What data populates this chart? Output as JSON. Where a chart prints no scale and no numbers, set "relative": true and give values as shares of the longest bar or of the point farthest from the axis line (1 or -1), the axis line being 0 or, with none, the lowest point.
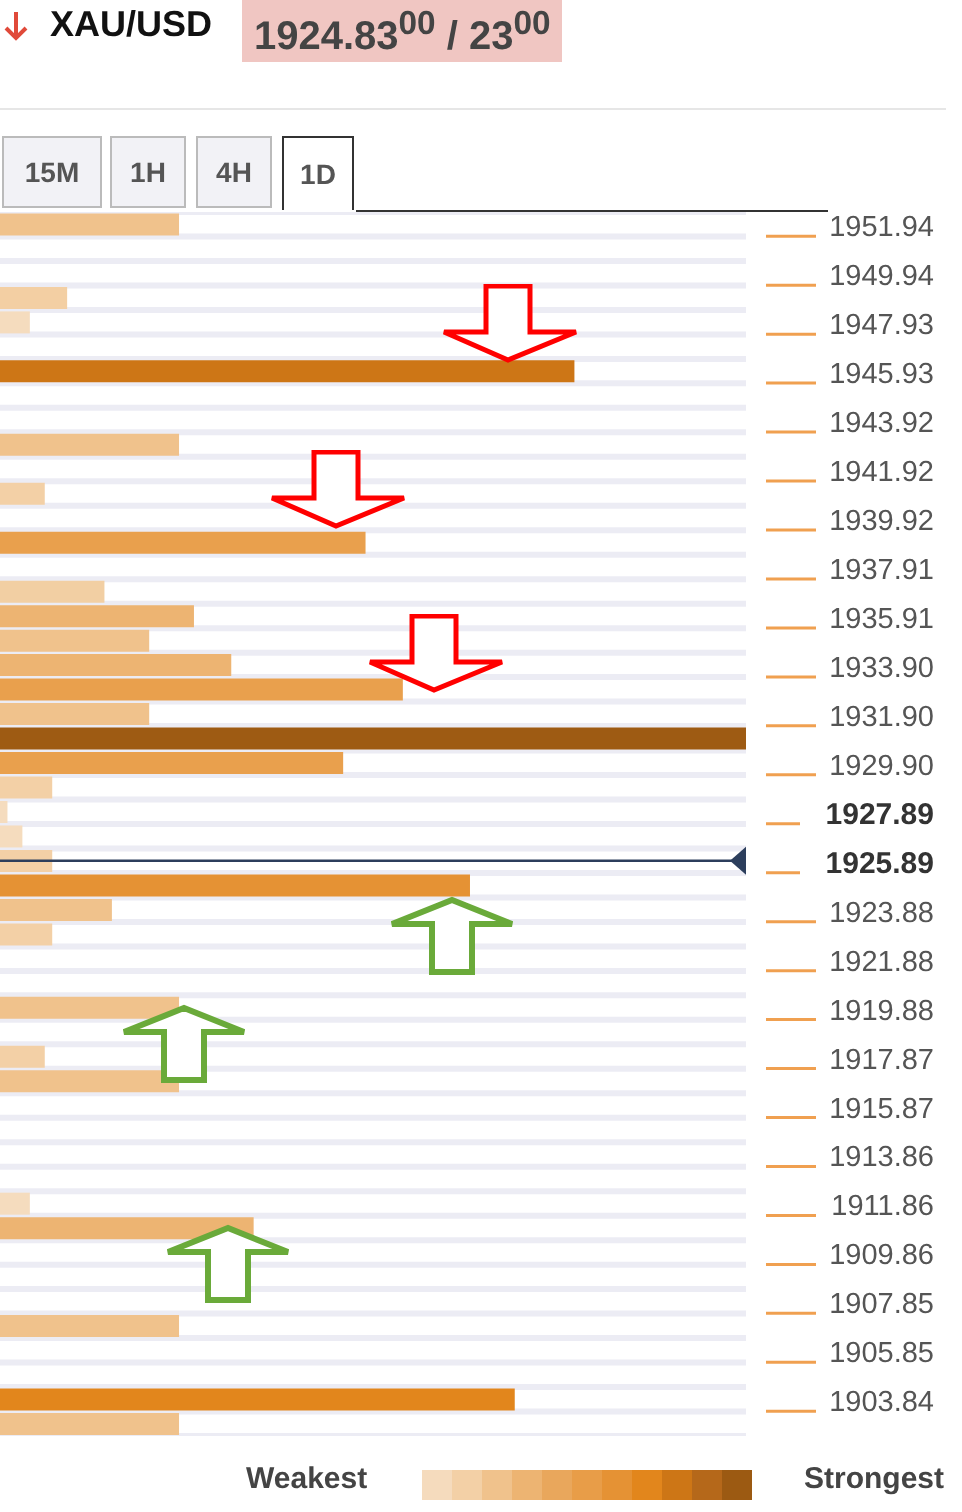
{
  "chart_data": {
    "type": "bar",
    "orientation": "horizontal",
    "relative": true,
    "title": "XAU/USD",
    "subtitle": "1924.83$^{00}$ / 23$^{00}$",
    "annotations": [
      "15M",
      "1H",
      "4H",
      "1D",
      "Weakest",
      "Strongest"
    ],
    "categories": [
      "1951.94",
      null,
      "1949.94",
      null,
      "1947.93",
      null,
      "1945.93",
      null,
      "1943.92",
      null,
      "1941.92",
      null,
      "1939.92",
      null,
      "1937.91",
      null,
      "1935.91",
      null,
      "1933.90",
      null,
      "1931.90",
      null,
      "1929.90",
      null,
      "1927.89",
      null,
      "1925.89",
      null,
      "1923.88",
      null,
      "1921.88",
      null,
      "1919.88",
      null,
      "1917.87",
      null,
      "1915.87",
      null,
      "1913.86",
      null,
      "1911.86",
      null,
      "1909.86",
      null,
      "1907.85",
      null,
      "1905.85",
      null,
      "1903.84",
      null
    ],
    "values": [
      0.24,
      null,
      null,
      0.09,
      0.04,
      null,
      0.77,
      null,
      null,
      0.24,
      null,
      0.06,
      null,
      0.49,
      null,
      0.14,
      0.26,
      0.2,
      0.31,
      0.54,
      0.2,
      1,
      0.46,
      0.07,
      0.01,
      0.03,
      0.07,
      0.63,
      0.15,
      0.07,
      null,
      null,
      0.24,
      null,
      0.06,
      0.24,
      null,
      null,
      null,
      null,
      0.04,
      0.34,
      null,
      null,
      null,
      0.24,
      null,
      null,
      0.69,
      0.24
    ],
    "colors": [
      "#f0c28c",
      null,
      null,
      "#f3cfa3",
      "#f5dcbe",
      null,
      "#cd7616",
      null,
      null,
      "#f0c28c",
      null,
      "#f3d0a6",
      null,
      "#e9a04d",
      null,
      "#f2cfa3",
      "#edb472",
      "#f0c28c",
      "#edb472",
      "#e9a04d",
      "#f0c28c",
      "#9e5b13",
      "#e9a04d",
      "#f3d0a6",
      "#f5dcbe",
      "#f5dcbe",
      "#f3d0a6",
      "#e59234",
      "#f0c28c",
      "#f3d0a6",
      null,
      null,
      "#f0c28c",
      null,
      "#f3d0a6",
      "#f0c28c",
      null,
      null,
      null,
      null,
      "#f5dcbe",
      "#edb472",
      null,
      null,
      null,
      "#f0c28c",
      null,
      null,
      "#e2861c",
      "#f0c28c"
    ],
    "ref_lines": [
      {
        "axis": "y",
        "value": "1925.89",
        "color": "#2c3e5c"
      }
    ],
    "grid": "y",
    "tick_labels": "y"
  }
}
